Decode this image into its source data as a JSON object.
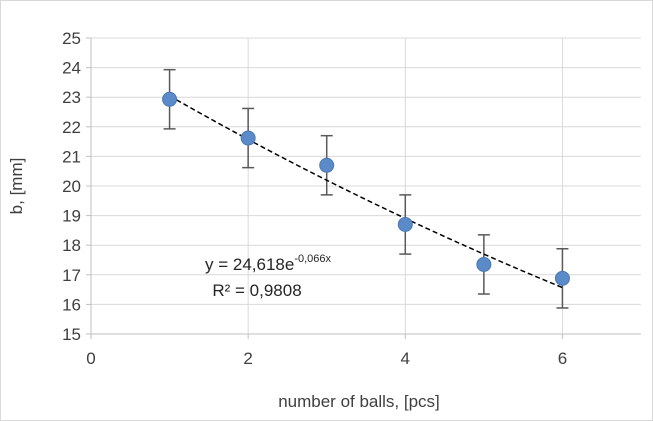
{
  "chart_data": {
    "type": "scatter",
    "title": "",
    "xlabel": "number of balls, [pcs]",
    "ylabel": "b, [mm]",
    "xlim": [
      0,
      7
    ],
    "ylim": [
      15,
      25
    ],
    "x_ticks": [
      "0",
      "2",
      "4",
      "6"
    ],
    "y_ticks": [
      "15",
      "16",
      "17",
      "18",
      "19",
      "20",
      "21",
      "22",
      "23",
      "24",
      "25"
    ],
    "grid": true,
    "legend": "none",
    "point_color": "#5b8ac8",
    "series": [
      {
        "x": [
          1,
          2,
          3,
          4,
          5,
          6
        ],
        "y": [
          22.93,
          21.62,
          20.7,
          18.7,
          17.35,
          16.88
        ],
        "error": 1.0
      }
    ],
    "trendline": {
      "type": "exponential",
      "a": 24.618,
      "b": -0.066,
      "x_range": [
        1,
        6
      ],
      "style": "dashed",
      "color": "#000000",
      "equation_base": "y = 24,618e",
      "equation_exponent": "-0,066x",
      "r_squared_label": "R² = 0,9808"
    }
  }
}
